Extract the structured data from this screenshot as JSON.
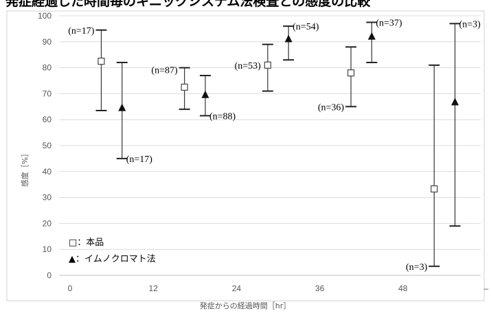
{
  "chart_data": {
    "type": "errorbar",
    "title": "発症経過した時間毎のキニックシステム法検査との感度の比較",
    "xlabel": "発症からの経過時間［hr］",
    "ylabel": "感度［%］",
    "ylim": [
      0,
      100
    ],
    "y_ticks": [
      "0",
      "10",
      "20",
      "30",
      "40",
      "50",
      "60",
      "70",
      "80",
      "90",
      "100"
    ],
    "x_ticks": [
      "0",
      "12",
      "24",
      "36",
      "48",
      "–"
    ],
    "grid": true,
    "legend_position": "bottom-left",
    "legend": [
      {
        "symbol": "□",
        "label": "：本品"
      },
      {
        "symbol": "▲",
        "label": "：イムノクロマト法"
      }
    ],
    "series": [
      {
        "name": "本品",
        "marker": "open-square",
        "points": [
          {
            "x": 4.5,
            "y": 82.5,
            "low": 63.5,
            "high": 94.5,
            "n_label": "(n=17)"
          },
          {
            "x": 16.5,
            "y": 72.5,
            "low": 64,
            "high": 80,
            "n_label": "(n=87)"
          },
          {
            "x": 28.5,
            "y": 81,
            "low": 71,
            "high": 89,
            "n_label": "(n=53)"
          },
          {
            "x": 40.5,
            "y": 78,
            "low": 65,
            "high": 88,
            "n_label": "(n=36)"
          },
          {
            "x": 52.5,
            "y": 33.3,
            "low": 3.5,
            "high": 81,
            "n_label": "(n=3)"
          }
        ]
      },
      {
        "name": "イムノクロマト法",
        "marker": "filled-triangle",
        "points": [
          {
            "x": 7.5,
            "y": 64.5,
            "low": 45,
            "high": 82,
            "n_label": "(n=17)"
          },
          {
            "x": 19.5,
            "y": 69.5,
            "low": 61.5,
            "high": 77,
            "n_label": "(n=88)"
          },
          {
            "x": 31.5,
            "y": 91,
            "low": 83,
            "high": 96,
            "n_label": "(n=54)"
          },
          {
            "x": 43.5,
            "y": 92,
            "low": 82,
            "high": 97.5,
            "n_label": "(n=37)"
          },
          {
            "x": 55.5,
            "y": 66.7,
            "low": 19,
            "high": 97,
            "n_label": "(n=3)"
          }
        ]
      }
    ]
  }
}
